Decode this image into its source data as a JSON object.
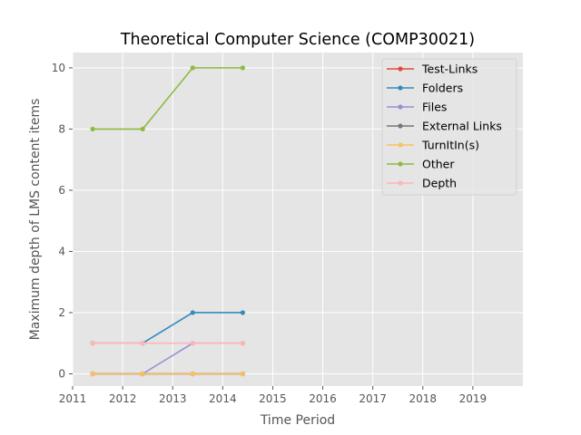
{
  "chart_data": {
    "type": "line",
    "title": "Theoretical Computer Science (COMP30021)",
    "xlabel": "Time Period",
    "ylabel": "Maximum depth of LMS content items",
    "xlim": [
      2011,
      2020
    ],
    "ylim": [
      -0.4,
      10.5
    ],
    "xticks": [
      "2011",
      "2012",
      "2013",
      "2014",
      "2015",
      "2016",
      "2017",
      "2018",
      "2019"
    ],
    "yticks": [
      "0",
      "2",
      "4",
      "6",
      "8",
      "10"
    ],
    "grid": true,
    "legend_position": "top-right",
    "x": [
      2011.4,
      2012.4,
      2013.4,
      2014.4
    ],
    "series": [
      {
        "name": "Test-Links",
        "color": "#e24a33",
        "values": [
          0,
          0,
          0,
          0
        ]
      },
      {
        "name": "Folders",
        "color": "#348abd",
        "values": [
          1,
          1,
          2,
          2
        ]
      },
      {
        "name": "Files",
        "color": "#988ed5",
        "values": [
          0,
          0,
          1,
          1
        ]
      },
      {
        "name": "External Links",
        "color": "#777777",
        "values": [
          0,
          0,
          0,
          0
        ]
      },
      {
        "name": "TurnItIn(s)",
        "color": "#fbc15e",
        "values": [
          0,
          0,
          0,
          0
        ]
      },
      {
        "name": "Other",
        "color": "#8eba42",
        "values": [
          8,
          8,
          10,
          10
        ]
      },
      {
        "name": "Depth",
        "color": "#ffb5b8",
        "values": [
          1,
          1,
          1,
          1
        ]
      }
    ]
  }
}
